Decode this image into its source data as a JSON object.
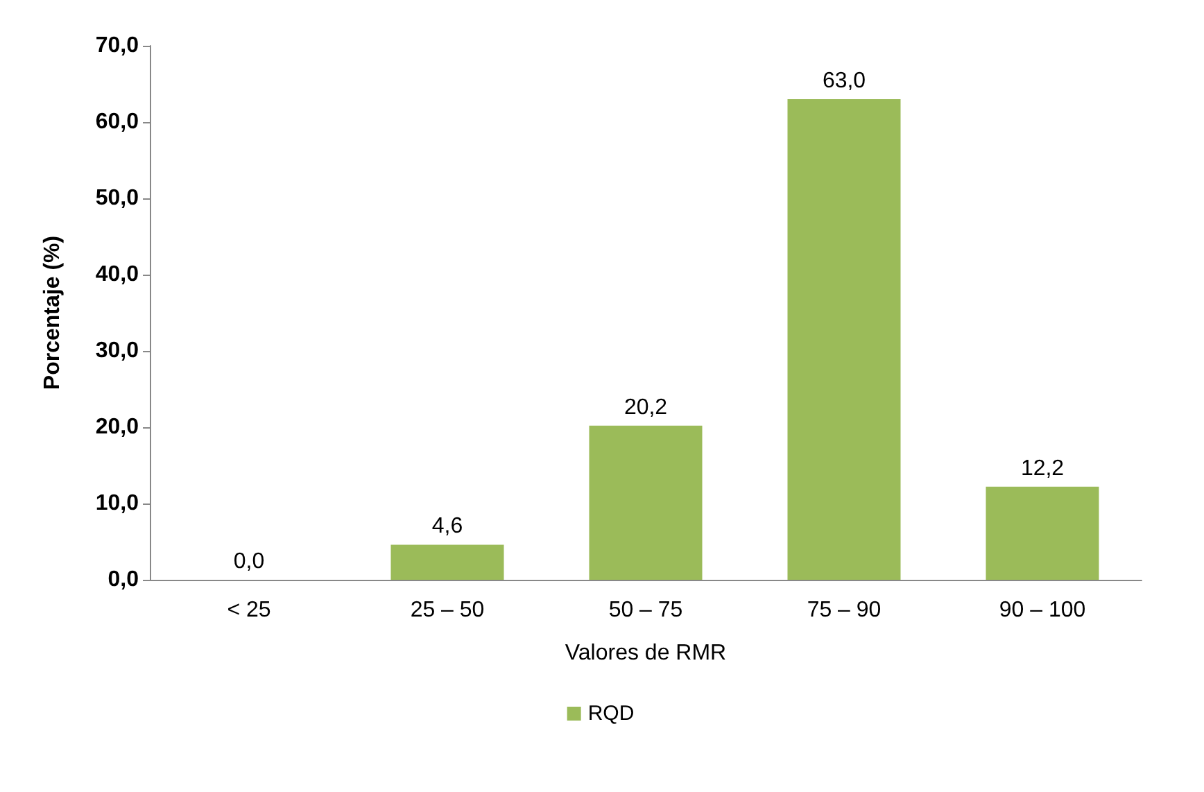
{
  "chart_data": {
    "type": "bar",
    "xlabel": "Valores de RMR",
    "ylabel": "Porcentaje (%)",
    "categories": [
      "< 25",
      "25 – 50",
      "50 – 75",
      "75 – 90",
      "90 – 100"
    ],
    "series": [
      {
        "name": "RQD",
        "color": "#9bbb59",
        "values": [
          0.0,
          4.6,
          20.2,
          63.0,
          12.2
        ],
        "value_labels": [
          "0,0",
          "4,6",
          "20,2",
          "63,0",
          "12,2"
        ]
      }
    ],
    "ylim": [
      0,
      70
    ],
    "yticks": [
      {
        "value": 0,
        "label": "0,0"
      },
      {
        "value": 10,
        "label": "10,0"
      },
      {
        "value": 20,
        "label": "20,0"
      },
      {
        "value": 30,
        "label": "30,0"
      },
      {
        "value": 40,
        "label": "40,0"
      },
      {
        "value": 50,
        "label": "50,0"
      },
      {
        "value": 60,
        "label": "60,0"
      },
      {
        "value": 70,
        "label": "70,0"
      }
    ],
    "grid": false,
    "legend": "bottom"
  }
}
